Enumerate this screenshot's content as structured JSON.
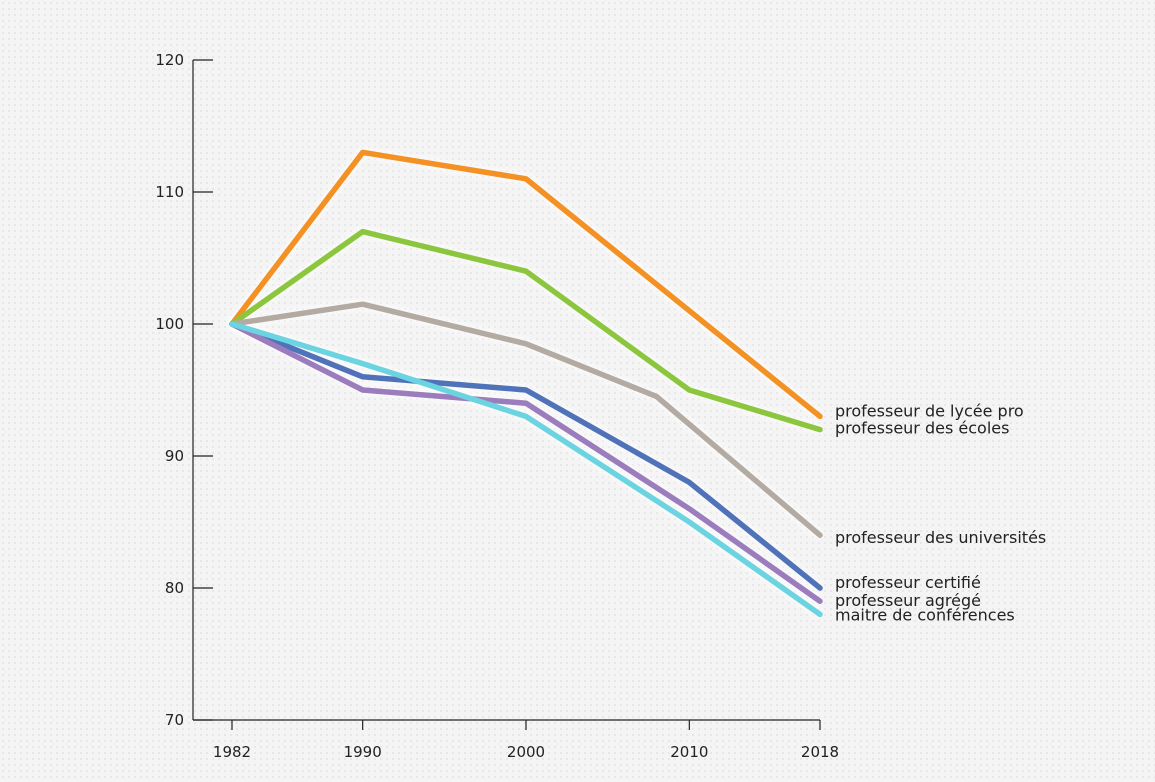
{
  "chart_data": {
    "type": "line",
    "title": "",
    "xlabel": "",
    "ylabel": "",
    "x": [
      1982,
      1990,
      2000,
      2010,
      2018
    ],
    "x_ticks": [
      "1982",
      "1990",
      "2000",
      "2010",
      "2018"
    ],
    "ylim": [
      70,
      120
    ],
    "y_ticks": [
      70,
      80,
      90,
      100,
      110,
      120
    ],
    "grid": false,
    "legend": "inline labels at right end of lines",
    "series": [
      {
        "name": "professeur de lycée pro",
        "color": "#f39124",
        "points": [
          [
            1982,
            100
          ],
          [
            1990,
            113
          ],
          [
            2000,
            111
          ],
          [
            2018,
            93
          ]
        ]
      },
      {
        "name": "professeur des écoles",
        "color": "#8cc63e",
        "points": [
          [
            1982,
            100
          ],
          [
            1990,
            107
          ],
          [
            2000,
            104
          ],
          [
            2010,
            95
          ],
          [
            2018,
            92
          ]
        ]
      },
      {
        "name": "professeur des universités",
        "color": "#b3aaa2",
        "points": [
          [
            1982,
            100
          ],
          [
            1990,
            101.5
          ],
          [
            2000,
            98.5
          ],
          [
            2008,
            94.5
          ],
          [
            2018,
            84
          ]
        ]
      },
      {
        "name": "professeur certifié",
        "color": "#4f72b8",
        "points": [
          [
            1982,
            100
          ],
          [
            1990,
            96
          ],
          [
            2000,
            95
          ],
          [
            2010,
            88
          ],
          [
            2018,
            80
          ]
        ]
      },
      {
        "name": "professeur agrégé",
        "color": "#9b7cbd",
        "points": [
          [
            1982,
            100
          ],
          [
            1990,
            95
          ],
          [
            2000,
            94
          ],
          [
            2010,
            86
          ],
          [
            2018,
            79
          ]
        ]
      },
      {
        "name": "maitre de conférences",
        "color": "#6cd3e0",
        "points": [
          [
            1982,
            100
          ],
          [
            1990,
            97
          ],
          [
            2000,
            93
          ],
          [
            2010,
            85
          ],
          [
            2018,
            78
          ]
        ]
      }
    ]
  }
}
